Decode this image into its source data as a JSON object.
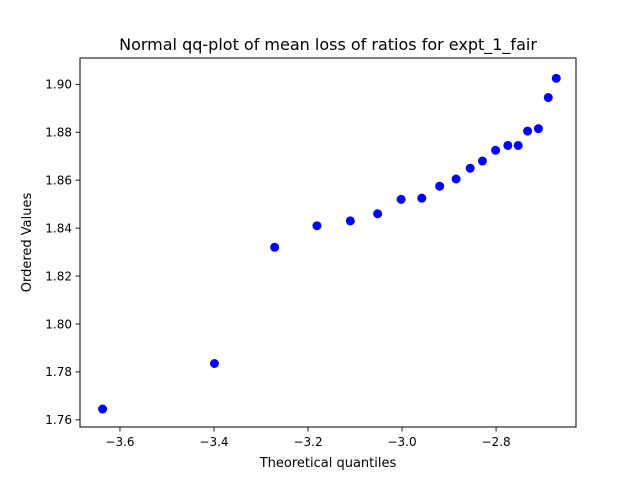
{
  "chart_data": {
    "type": "scatter",
    "title": "Normal qq-plot of mean loss of ratios for expt_1_fair",
    "xlabel": "Theoretical quantiles",
    "ylabel": "Ordered Values",
    "xlim": [
      -3.685,
      -2.63
    ],
    "ylim": [
      1.757,
      1.911
    ],
    "grid": false,
    "marker_color": "#0000ff",
    "x_ticks": [
      {
        "value": -3.6,
        "label": "−3.6"
      },
      {
        "value": -3.4,
        "label": "−3.4"
      },
      {
        "value": -3.2,
        "label": "−3.2"
      },
      {
        "value": -3.0,
        "label": "−3.0"
      },
      {
        "value": -2.8,
        "label": "−2.8"
      }
    ],
    "y_ticks": [
      {
        "value": 1.76,
        "label": "1.76"
      },
      {
        "value": 1.78,
        "label": "1.78"
      },
      {
        "value": 1.8,
        "label": "1.80"
      },
      {
        "value": 1.82,
        "label": "1.82"
      },
      {
        "value": 1.84,
        "label": "1.84"
      },
      {
        "value": 1.86,
        "label": "1.86"
      },
      {
        "value": 1.88,
        "label": "1.88"
      },
      {
        "value": 1.9,
        "label": "1.90"
      }
    ],
    "points": [
      {
        "x": -3.637,
        "y": 1.7645
      },
      {
        "x": -3.399,
        "y": 1.7835
      },
      {
        "x": -3.271,
        "y": 1.832
      },
      {
        "x": -3.181,
        "y": 1.841
      },
      {
        "x": -3.11,
        "y": 1.843
      },
      {
        "x": -3.052,
        "y": 1.846
      },
      {
        "x": -3.002,
        "y": 1.852
      },
      {
        "x": -2.958,
        "y": 1.8525
      },
      {
        "x": -2.92,
        "y": 1.8575
      },
      {
        "x": -2.885,
        "y": 1.8605
      },
      {
        "x": -2.855,
        "y": 1.865
      },
      {
        "x": -2.829,
        "y": 1.868
      },
      {
        "x": -2.801,
        "y": 1.8725
      },
      {
        "x": -2.775,
        "y": 1.8745
      },
      {
        "x": -2.753,
        "y": 1.8745
      },
      {
        "x": -2.733,
        "y": 1.8805
      },
      {
        "x": -2.71,
        "y": 1.8815
      },
      {
        "x": -2.689,
        "y": 1.8945
      },
      {
        "x": -2.672,
        "y": 1.9025
      }
    ]
  }
}
